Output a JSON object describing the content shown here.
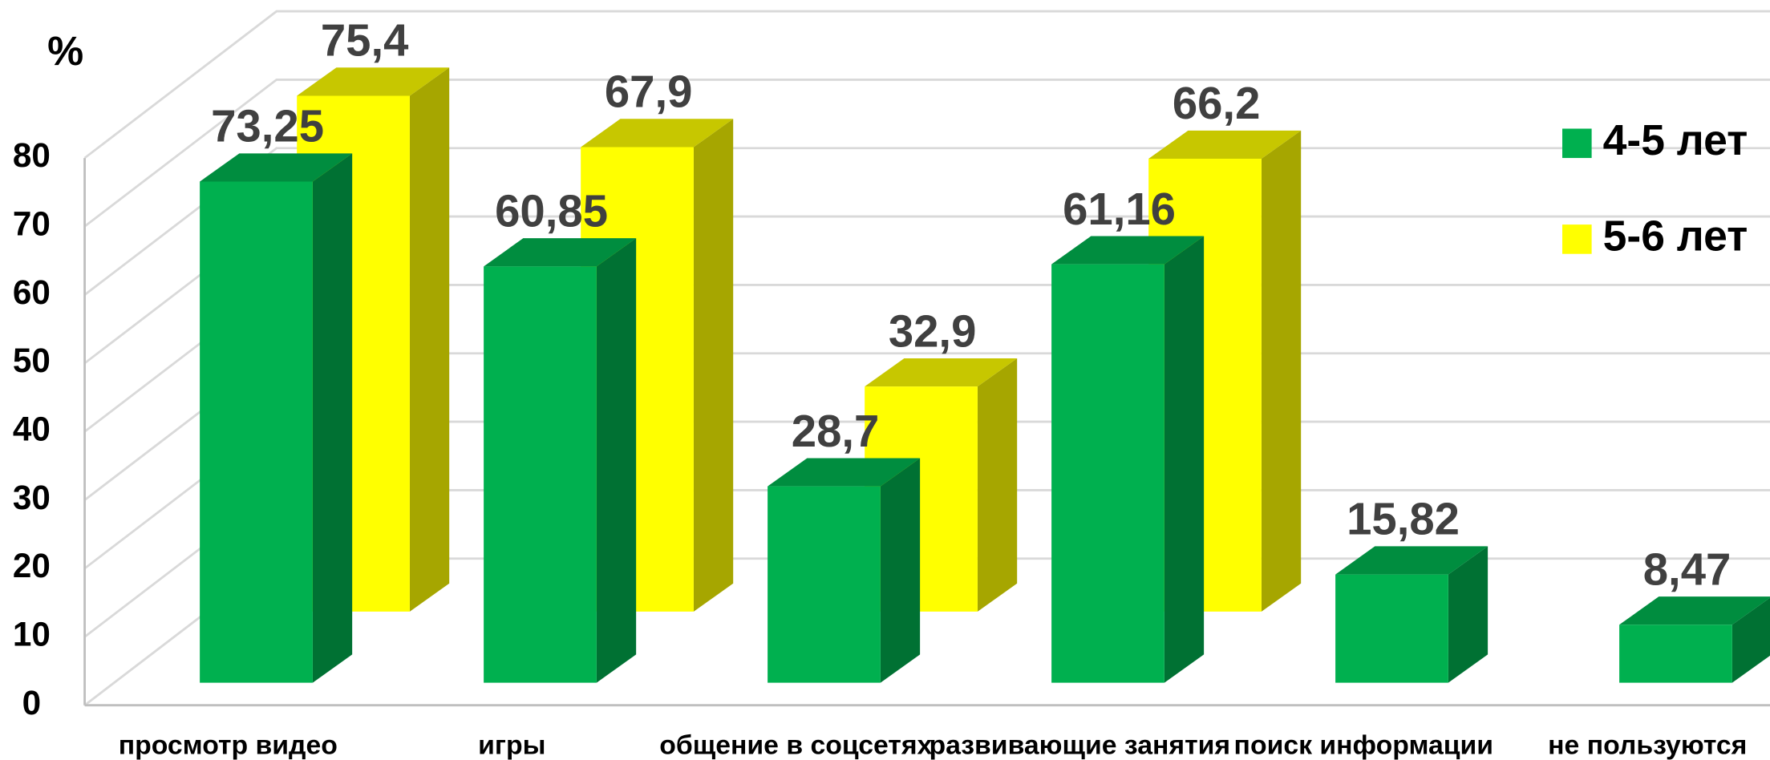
{
  "chart_data": {
    "type": "bar3d",
    "y_label": "%",
    "categories": [
      "просмотр видео",
      "игры",
      "общение в соцсетях",
      "развивающие занятия",
      "поиск информации",
      "не пользуются"
    ],
    "series": [
      {
        "name": "4-5 лет",
        "color": "#00b04f",
        "values": [
          73.25,
          60.85,
          28.7,
          61.16,
          15.82,
          8.47
        ],
        "value_labels": [
          "73,25",
          "60,85",
          "28,7",
          "61,16",
          "15,82",
          "8,47"
        ]
      },
      {
        "name": "5-6 лет",
        "color": "#ffff00",
        "values": [
          75.4,
          67.9,
          32.9,
          66.2,
          null,
          null
        ],
        "value_labels": [
          "75,4",
          "67,9",
          "32,9",
          "66,2",
          null,
          null
        ]
      }
    ],
    "ylim": [
      0,
      80
    ],
    "yticks": [
      0,
      10,
      20,
      30,
      40,
      50,
      60,
      70,
      80
    ],
    "grid": true,
    "legend": "upper right"
  }
}
